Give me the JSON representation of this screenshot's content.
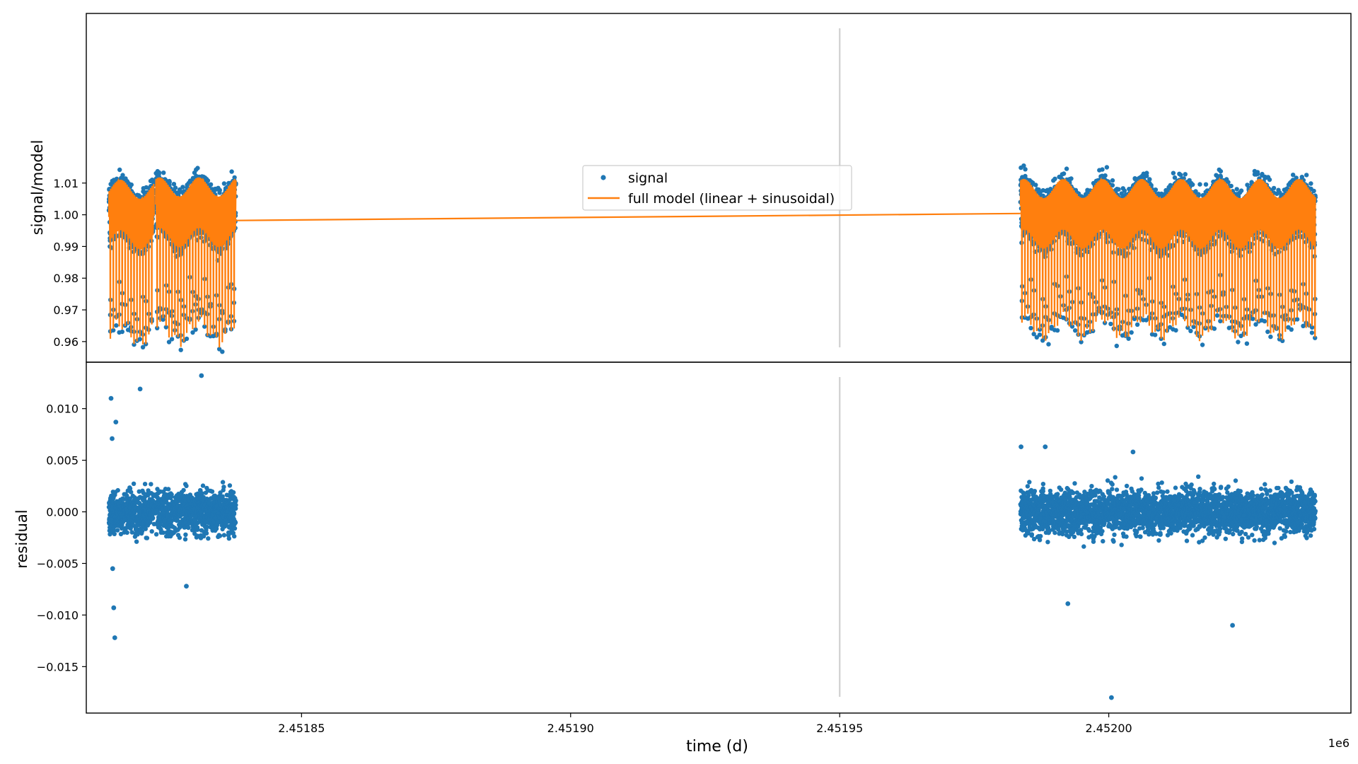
{
  "chart_data": [
    {
      "type": "scatter",
      "panel": "top",
      "ylabel": "signal/model",
      "xlim": [
        2451810,
        2452045
      ],
      "ylim": [
        0.9535,
        1.0635
      ],
      "y_ticks": [
        0.96,
        0.97,
        0.98,
        0.99,
        1.0,
        1.01
      ],
      "y_tick_labels": [
        "0.96",
        "0.97",
        "0.98",
        "0.99",
        "1.00",
        "1.01"
      ],
      "grid": false,
      "legend_placement": "center",
      "legend": [
        "signal",
        "full model (linear + sinusoidal)"
      ],
      "vertical_line_x": 2451950,
      "segments": [
        {
          "x_start": 2451814.2,
          "x_end": 2451822.6,
          "baseline": 1.0001,
          "transit_depth": 0.04,
          "period": 0.55,
          "scatter": 0.0022
        },
        {
          "x_start": 2451822.9,
          "x_end": 2451837.8,
          "baseline": 1.0008,
          "transit_depth": 0.04,
          "period": 0.55,
          "scatter": 0.0022
        },
        {
          "x_start": 2451983.6,
          "x_end": 2452038.4,
          "baseline": 1.0003,
          "transit_depth": 0.038,
          "period": 0.55,
          "scatter": 0.0022
        }
      ],
      "series": [
        {
          "name": "signal",
          "color": "#1f77b4",
          "kind": "points"
        },
        {
          "name": "full model (linear + sinusoidal)",
          "color": "#ff7f0e",
          "kind": "line",
          "linear_trend": [
            [
              2451837.8,
              0.9982
            ],
            [
              2451983.6,
              1.0004
            ]
          ]
        }
      ]
    },
    {
      "type": "scatter",
      "panel": "bottom",
      "ylabel": "residual",
      "xlabel": "time (d)",
      "x_offset_label": "1e6",
      "xlim": [
        2451810,
        2452045
      ],
      "ylim": [
        -0.0195,
        0.0145
      ],
      "x_ticks": [
        2451850,
        2451900,
        2451950,
        2452000
      ],
      "x_tick_labels": [
        "2.45185",
        "2.45190",
        "2.45195",
        "2.45200"
      ],
      "y_ticks": [
        -0.015,
        -0.01,
        -0.005,
        0.0,
        0.005,
        0.01
      ],
      "y_tick_labels": [
        "−0.015",
        "−0.010",
        "−0.005",
        "0.000",
        "0.005",
        "0.010"
      ],
      "grid": false,
      "vertical_line_x": 2451950,
      "residual_scatter": 0.0015,
      "outliers": [
        {
          "x": 2451814.6,
          "y": 0.011
        },
        {
          "x": 2451815.5,
          "y": 0.0087
        },
        {
          "x": 2451814.8,
          "y": 0.0071
        },
        {
          "x": 2451820.0,
          "y": 0.0119
        },
        {
          "x": 2451814.9,
          "y": -0.0055
        },
        {
          "x": 2451815.1,
          "y": -0.0093
        },
        {
          "x": 2451815.3,
          "y": -0.0122
        },
        {
          "x": 2451831.4,
          "y": 0.0132
        },
        {
          "x": 2451828.6,
          "y": -0.0072
        },
        {
          "x": 2451992.4,
          "y": -0.0089
        },
        {
          "x": 2452000.5,
          "y": -0.018
        },
        {
          "x": 2452023.0,
          "y": -0.011
        },
        {
          "x": 2452004.5,
          "y": 0.0058
        },
        {
          "x": 2451983.7,
          "y": 0.0063
        },
        {
          "x": 2451988.2,
          "y": 0.0063
        }
      ],
      "series": [
        {
          "name": "residual",
          "color": "#1f77b4",
          "kind": "points"
        }
      ]
    }
  ]
}
